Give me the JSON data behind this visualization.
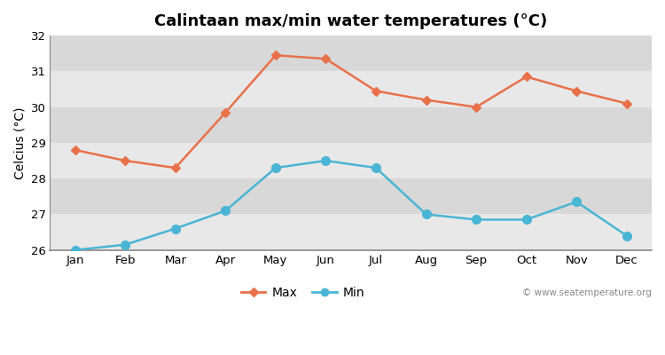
{
  "title": "Calintaan max/min water temperatures (°C)",
  "ylabel": "Celcius (°C)",
  "months": [
    "Jan",
    "Feb",
    "Mar",
    "Apr",
    "May",
    "Jun",
    "Jul",
    "Aug",
    "Sep",
    "Oct",
    "Nov",
    "Dec"
  ],
  "max_values": [
    28.8,
    28.5,
    28.3,
    29.85,
    31.45,
    31.35,
    30.45,
    30.2,
    30.0,
    30.85,
    30.45,
    30.1
  ],
  "min_values": [
    26.0,
    26.15,
    26.6,
    27.1,
    28.3,
    28.5,
    28.3,
    27.0,
    26.85,
    26.85,
    27.35,
    26.4
  ],
  "max_color": "#e8714a",
  "min_color": "#4ab5d4",
  "fig_bg_color": "#ffffff",
  "band_colors": [
    "#e8e8e8",
    "#d8d8d8"
  ],
  "ylim": [
    26,
    32
  ],
  "yticks": [
    26,
    27,
    28,
    29,
    30,
    31,
    32
  ],
  "watermark": "© www.seatemperature.org",
  "max_marker": "D",
  "min_marker": "o",
  "max_markersize": 5,
  "min_markersize": 7,
  "linewidth": 1.8,
  "title_fontsize": 13,
  "label_fontsize": 10,
  "tick_fontsize": 9.5,
  "legend_fontsize": 10
}
